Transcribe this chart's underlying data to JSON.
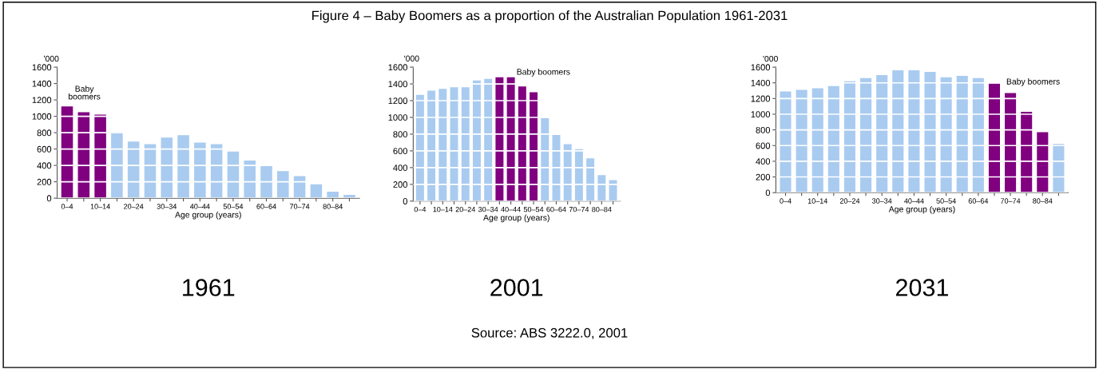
{
  "chart_data": [
    {
      "type": "other",
      "title": "Figure 4 – Baby Boomers as a proportion of the Australian Population 1961-2031",
      "annotations": [
        "Source: ABS 3222.0, 2001"
      ]
    },
    {
      "type": "bar",
      "xlabel": "Age group (years)",
      "ylabel": "'000",
      "categories": [
        "0–4",
        null,
        "10–14",
        null,
        "20–24",
        null,
        "30–34",
        null,
        "40–44",
        null,
        "50–54",
        null,
        "60–64",
        null,
        "70–74",
        null,
        "80–84",
        null
      ],
      "values": [
        1120,
        1050,
        1020,
        810,
        690,
        660,
        740,
        770,
        680,
        660,
        570,
        460,
        390,
        330,
        270,
        170,
        80,
        40
      ],
      "colors": [
        "#800080",
        "#800080",
        "#800080",
        "#a9cbf0",
        "#a9cbf0",
        "#a9cbf0",
        "#a9cbf0",
        "#a9cbf0",
        "#a9cbf0",
        "#a9cbf0",
        "#a9cbf0",
        "#a9cbf0",
        "#a9cbf0",
        "#a9cbf0",
        "#a9cbf0",
        "#a9cbf0",
        "#a9cbf0",
        "#a9cbf0"
      ],
      "ylim": [
        0,
        1600
      ],
      "yticks": [
        0,
        200,
        400,
        600,
        800,
        1000,
        1200,
        1400,
        1600
      ],
      "grid": "y",
      "annotations": [
        "Baby\nboomers",
        "1961"
      ]
    },
    {
      "type": "bar",
      "xlabel": "Age group (years)",
      "ylabel": "'000",
      "categories": [
        "0–4",
        null,
        "10–14",
        null,
        "20–24",
        null,
        "30–34",
        null,
        "40–44",
        null,
        "50–54",
        null,
        "60–64",
        null,
        "70–74",
        null,
        "80–84",
        null
      ],
      "values": [
        1270,
        1320,
        1340,
        1360,
        1360,
        1440,
        1460,
        1480,
        1480,
        1370,
        1300,
        990,
        790,
        680,
        620,
        510,
        310,
        250
      ],
      "colors": [
        "#a9cbf0",
        "#a9cbf0",
        "#a9cbf0",
        "#a9cbf0",
        "#a9cbf0",
        "#a9cbf0",
        "#a9cbf0",
        "#800080",
        "#800080",
        "#800080",
        "#800080",
        "#a9cbf0",
        "#a9cbf0",
        "#a9cbf0",
        "#a9cbf0",
        "#a9cbf0",
        "#a9cbf0",
        "#a9cbf0"
      ],
      "ylim": [
        0,
        1600
      ],
      "yticks": [
        0,
        200,
        400,
        600,
        800,
        1000,
        1200,
        1400,
        1600
      ],
      "grid": "y",
      "annotations": [
        "Baby boomers",
        "2001"
      ]
    },
    {
      "type": "bar",
      "xlabel": "Age group (years)",
      "ylabel": "'000",
      "categories": [
        "0–4",
        null,
        "10–14",
        null,
        "20–24",
        null,
        "30–34",
        null,
        "40–44",
        null,
        "50–54",
        null,
        "60–64",
        null,
        "70–74",
        null,
        "80–84",
        null
      ],
      "values": [
        1290,
        1310,
        1330,
        1360,
        1420,
        1460,
        1500,
        1560,
        1560,
        1540,
        1470,
        1490,
        1460,
        1390,
        1270,
        1030,
        770,
        620
      ],
      "colors": [
        "#a9cbf0",
        "#a9cbf0",
        "#a9cbf0",
        "#a9cbf0",
        "#a9cbf0",
        "#a9cbf0",
        "#a9cbf0",
        "#a9cbf0",
        "#a9cbf0",
        "#a9cbf0",
        "#a9cbf0",
        "#a9cbf0",
        "#a9cbf0",
        "#800080",
        "#800080",
        "#800080",
        "#800080",
        "#a9cbf0"
      ],
      "ylim": [
        0,
        1600
      ],
      "yticks": [
        0,
        200,
        400,
        600,
        800,
        1000,
        1200,
        1400,
        1600
      ],
      "grid": "y",
      "annotations": [
        "Baby boomers",
        "2031"
      ]
    }
  ]
}
